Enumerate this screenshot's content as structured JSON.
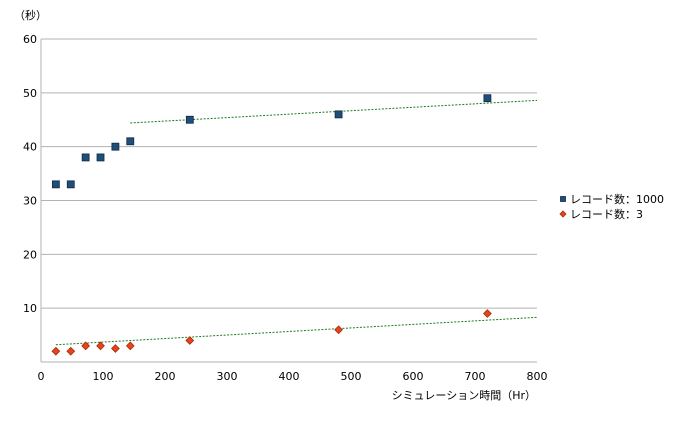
{
  "chart_data": {
    "type": "scatter",
    "ylabel": "（秒）",
    "xlabel": "シミュレーション時間（Hr）",
    "xlim": [
      0,
      800
    ],
    "ylim": [
      0,
      60
    ],
    "x_ticks": [
      0,
      100,
      200,
      300,
      400,
      500,
      600,
      700,
      800
    ],
    "y_ticks": [
      10,
      20,
      30,
      40,
      50,
      60
    ],
    "grid": "horizontal",
    "legend_position": "right",
    "series": [
      {
        "name": "レコード数：1000",
        "marker": "square",
        "color": "#1f4e79",
        "x": [
          24,
          48,
          72,
          96,
          120,
          144,
          240,
          480,
          720
        ],
        "y": [
          33,
          33,
          38,
          38,
          40,
          41,
          45,
          46,
          49
        ],
        "trendline": {
          "x": [
            144,
            800
          ],
          "y": [
            44.4,
            48.6
          ],
          "color": "#1e7a1e"
        }
      },
      {
        "name": "レコード数：3",
        "marker": "diamond",
        "color": "#e8441c",
        "x": [
          24,
          48,
          72,
          96,
          120,
          144,
          240,
          480,
          720
        ],
        "y": [
          2,
          2,
          3,
          3,
          2.5,
          3,
          4,
          6,
          9
        ],
        "trendline": {
          "x": [
            24,
            800
          ],
          "y": [
            3.2,
            8.3
          ],
          "color": "#1e7a1e"
        }
      }
    ]
  }
}
